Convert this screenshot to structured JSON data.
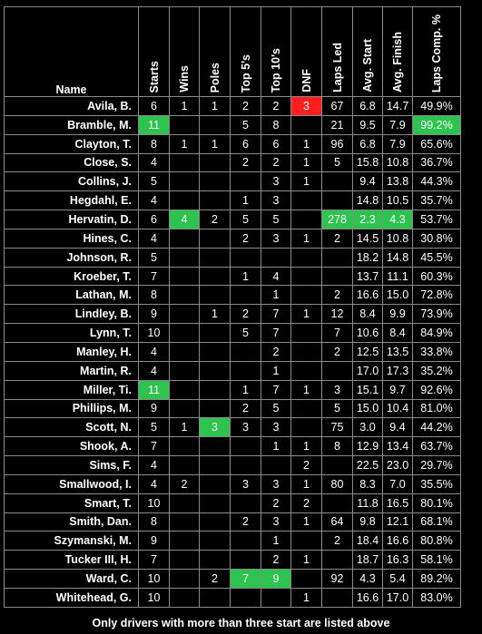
{
  "columns": {
    "name": "Name",
    "starts": "Starts",
    "wins": "Wins",
    "poles": "Poles",
    "top5": "Top 5's",
    "top10": "Top 10's",
    "dnf": "DNF",
    "laps_led": "Laps Led",
    "avg_start": "Avg. Start",
    "avg_finish": "Avg. Finish",
    "laps_comp": "Laps Comp. %"
  },
  "highlight_colors": {
    "green": "#2ec24f",
    "red": "#ff1f1f"
  },
  "rows": [
    {
      "name": "Avila, B.",
      "starts": "6",
      "wins": "1",
      "poles": "1",
      "top5": "2",
      "top10": "2",
      "dnf": "3",
      "laps_led": "67",
      "avg_start": "6.8",
      "avg_finish": "14.7",
      "laps_comp": "49.9%"
    },
    {
      "name": "Bramble, M.",
      "starts": "11",
      "wins": "",
      "poles": "",
      "top5": "5",
      "top10": "8",
      "dnf": "",
      "laps_led": "21",
      "avg_start": "9.5",
      "avg_finish": "7.9",
      "laps_comp": "99.2%"
    },
    {
      "name": "Clayton, T.",
      "starts": "8",
      "wins": "1",
      "poles": "1",
      "top5": "6",
      "top10": "6",
      "dnf": "1",
      "laps_led": "96",
      "avg_start": "6.8",
      "avg_finish": "7.9",
      "laps_comp": "65.6%"
    },
    {
      "name": "Close, S.",
      "starts": "4",
      "wins": "",
      "poles": "",
      "top5": "2",
      "top10": "2",
      "dnf": "1",
      "laps_led": "5",
      "avg_start": "15.8",
      "avg_finish": "10.8",
      "laps_comp": "36.7%"
    },
    {
      "name": "Collins, J.",
      "starts": "5",
      "wins": "",
      "poles": "",
      "top5": "",
      "top10": "3",
      "dnf": "1",
      "laps_led": "",
      "avg_start": "9.4",
      "avg_finish": "13.8",
      "laps_comp": "44.3%"
    },
    {
      "name": "Hegdahl, E.",
      "starts": "4",
      "wins": "",
      "poles": "",
      "top5": "1",
      "top10": "3",
      "dnf": "",
      "laps_led": "",
      "avg_start": "14.8",
      "avg_finish": "10.5",
      "laps_comp": "35.7%"
    },
    {
      "name": "Hervatin, D.",
      "starts": "6",
      "wins": "4",
      "poles": "2",
      "top5": "5",
      "top10": "5",
      "dnf": "",
      "laps_led": "278",
      "avg_start": "2.3",
      "avg_finish": "4.3",
      "laps_comp": "53.7%"
    },
    {
      "name": "Hines, C.",
      "starts": "4",
      "wins": "",
      "poles": "",
      "top5": "2",
      "top10": "3",
      "dnf": "1",
      "laps_led": "2",
      "avg_start": "14.5",
      "avg_finish": "10.8",
      "laps_comp": "30.8%"
    },
    {
      "name": "Johnson, R.",
      "starts": "5",
      "wins": "",
      "poles": "",
      "top5": "",
      "top10": "",
      "dnf": "",
      "laps_led": "",
      "avg_start": "18.2",
      "avg_finish": "14.8",
      "laps_comp": "45.5%"
    },
    {
      "name": "Kroeber, T.",
      "starts": "7",
      "wins": "",
      "poles": "",
      "top5": "1",
      "top10": "4",
      "dnf": "",
      "laps_led": "",
      "avg_start": "13.7",
      "avg_finish": "11.1",
      "laps_comp": "60.3%"
    },
    {
      "name": "Lathan, M.",
      "starts": "8",
      "wins": "",
      "poles": "",
      "top5": "",
      "top10": "1",
      "dnf": "",
      "laps_led": "2",
      "avg_start": "16.6",
      "avg_finish": "15.0",
      "laps_comp": "72.8%"
    },
    {
      "name": "Lindley, B.",
      "starts": "9",
      "wins": "",
      "poles": "1",
      "top5": "2",
      "top10": "7",
      "dnf": "1",
      "laps_led": "12",
      "avg_start": "8.4",
      "avg_finish": "9.9",
      "laps_comp": "73.9%"
    },
    {
      "name": "Lynn, T.",
      "starts": "10",
      "wins": "",
      "poles": "",
      "top5": "5",
      "top10": "7",
      "dnf": "",
      "laps_led": "7",
      "avg_start": "10.6",
      "avg_finish": "8.4",
      "laps_comp": "84.9%"
    },
    {
      "name": "Manley, H.",
      "starts": "4",
      "wins": "",
      "poles": "",
      "top5": "",
      "top10": "2",
      "dnf": "",
      "laps_led": "2",
      "avg_start": "12.5",
      "avg_finish": "13.5",
      "laps_comp": "33.8%"
    },
    {
      "name": "Martin, R.",
      "starts": "4",
      "wins": "",
      "poles": "",
      "top5": "",
      "top10": "1",
      "dnf": "",
      "laps_led": "",
      "avg_start": "17.0",
      "avg_finish": "17.3",
      "laps_comp": "35.2%"
    },
    {
      "name": "Miller, Ti.",
      "starts": "11",
      "wins": "",
      "poles": "",
      "top5": "1",
      "top10": "7",
      "dnf": "1",
      "laps_led": "3",
      "avg_start": "15.1",
      "avg_finish": "9.7",
      "laps_comp": "92.6%"
    },
    {
      "name": "Phillips, M.",
      "starts": "9",
      "wins": "",
      "poles": "",
      "top5": "2",
      "top10": "5",
      "dnf": "",
      "laps_led": "5",
      "avg_start": "15.0",
      "avg_finish": "10.4",
      "laps_comp": "81.0%"
    },
    {
      "name": "Scott, N.",
      "starts": "5",
      "wins": "1",
      "poles": "3",
      "top5": "3",
      "top10": "3",
      "dnf": "",
      "laps_led": "75",
      "avg_start": "3.0",
      "avg_finish": "9.4",
      "laps_comp": "44.2%"
    },
    {
      "name": "Shook, A.",
      "starts": "7",
      "wins": "",
      "poles": "",
      "top5": "",
      "top10": "1",
      "dnf": "1",
      "laps_led": "8",
      "avg_start": "12.9",
      "avg_finish": "13.4",
      "laps_comp": "63.7%"
    },
    {
      "name": "Sims, F.",
      "starts": "4",
      "wins": "",
      "poles": "",
      "top5": "",
      "top10": "",
      "dnf": "2",
      "laps_led": "",
      "avg_start": "22.5",
      "avg_finish": "23.0",
      "laps_comp": "29.7%"
    },
    {
      "name": "Smallwood, I.",
      "starts": "4",
      "wins": "2",
      "poles": "",
      "top5": "3",
      "top10": "3",
      "dnf": "1",
      "laps_led": "80",
      "avg_start": "8.3",
      "avg_finish": "7.0",
      "laps_comp": "35.5%"
    },
    {
      "name": "Smart, T.",
      "starts": "10",
      "wins": "",
      "poles": "",
      "top5": "",
      "top10": "2",
      "dnf": "2",
      "laps_led": "",
      "avg_start": "11.8",
      "avg_finish": "16.5",
      "laps_comp": "80.1%"
    },
    {
      "name": "Smith, Dan.",
      "starts": "8",
      "wins": "",
      "poles": "",
      "top5": "2",
      "top10": "3",
      "dnf": "1",
      "laps_led": "64",
      "avg_start": "9.8",
      "avg_finish": "12.1",
      "laps_comp": "68.1%"
    },
    {
      "name": "Szymanski, M.",
      "starts": "9",
      "wins": "",
      "poles": "",
      "top5": "",
      "top10": "1",
      "dnf": "",
      "laps_led": "2",
      "avg_start": "18.4",
      "avg_finish": "16.6",
      "laps_comp": "80.8%"
    },
    {
      "name": "Tucker III, H.",
      "starts": "7",
      "wins": "",
      "poles": "",
      "top5": "",
      "top10": "2",
      "dnf": "1",
      "laps_led": "",
      "avg_start": "18.7",
      "avg_finish": "16.3",
      "laps_comp": "58.1%"
    },
    {
      "name": "Ward, C.",
      "starts": "10",
      "wins": "",
      "poles": "2",
      "top5": "7",
      "top10": "9",
      "dnf": "",
      "laps_led": "92",
      "avg_start": "4.3",
      "avg_finish": "5.4",
      "laps_comp": "89.2%"
    },
    {
      "name": "Whitehead, G.",
      "starts": "10",
      "wins": "",
      "poles": "",
      "top5": "",
      "top10": "",
      "dnf": "1",
      "laps_led": "",
      "avg_start": "16.6",
      "avg_finish": "17.0",
      "laps_comp": "83.0%"
    }
  ],
  "highlights": [
    {
      "row": 0,
      "col": "dnf",
      "color": "red"
    },
    {
      "row": 1,
      "col": "starts",
      "color": "green"
    },
    {
      "row": 1,
      "col": "laps_comp",
      "color": "green"
    },
    {
      "row": 6,
      "col": "wins",
      "color": "green"
    },
    {
      "row": 6,
      "col": "laps_led",
      "color": "green"
    },
    {
      "row": 6,
      "col": "avg_start",
      "color": "green"
    },
    {
      "row": 6,
      "col": "avg_finish",
      "color": "green"
    },
    {
      "row": 15,
      "col": "starts",
      "color": "green"
    },
    {
      "row": 17,
      "col": "poles",
      "color": "green"
    },
    {
      "row": 25,
      "col": "top5",
      "color": "green"
    },
    {
      "row": 25,
      "col": "top10",
      "color": "green"
    }
  ],
  "footer": "Only drivers with more than three start are listed above"
}
